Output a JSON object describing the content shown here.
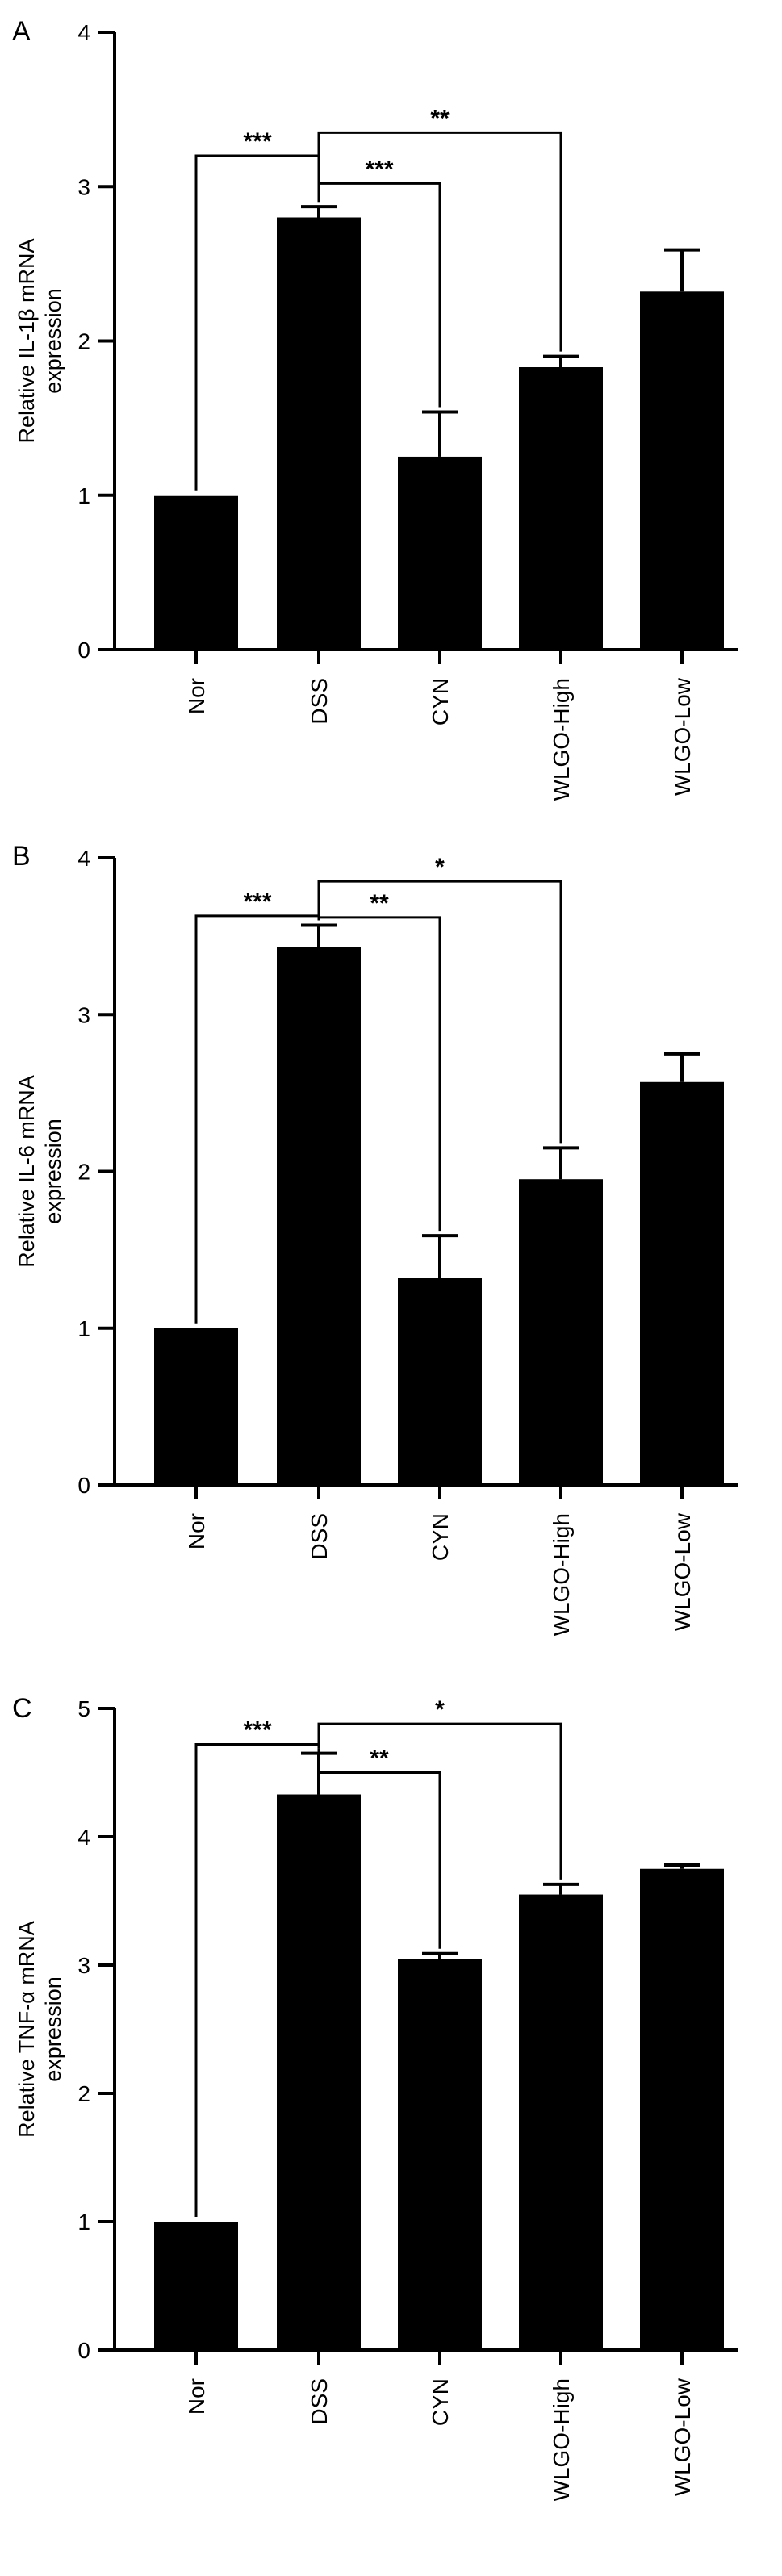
{
  "chart_data": [
    {
      "type": "bar",
      "panel_label": "A",
      "ylabel": [
        "Relative IL-1β mRNA",
        "expression"
      ],
      "categories": [
        "Nor",
        "DSS",
        "CYN",
        "WLGO-High",
        "WLGO-Low"
      ],
      "values": [
        1.0,
        2.8,
        1.25,
        1.83,
        2.32
      ],
      "errors": [
        0.0,
        0.07,
        0.29,
        0.07,
        0.27
      ],
      "ylim": [
        0,
        4
      ],
      "yticks": [
        "0",
        "1",
        "2",
        "3",
        "4"
      ],
      "significance": [
        {
          "from": "Nor",
          "to": "DSS",
          "label": "***",
          "y": 3.2
        },
        {
          "from": "DSS",
          "to": "CYN",
          "label": "***",
          "y": 3.02
        },
        {
          "from": "DSS",
          "to": "WLGO-High",
          "label": "**",
          "y": 3.35
        }
      ]
    },
    {
      "type": "bar",
      "panel_label": "B",
      "ylabel": [
        "Relative IL-6 mRNA",
        "expression"
      ],
      "categories": [
        "Nor",
        "DSS",
        "CYN",
        "WLGO-High",
        "WLGO-Low"
      ],
      "values": [
        1.0,
        3.43,
        1.32,
        1.95,
        2.57
      ],
      "errors": [
        0.0,
        0.14,
        0.27,
        0.2,
        0.18
      ],
      "ylim": [
        0,
        4
      ],
      "yticks": [
        "0",
        "1",
        "2",
        "3",
        "4"
      ],
      "significance": [
        {
          "from": "Nor",
          "to": "DSS",
          "label": "***",
          "y": 3.63
        },
        {
          "from": "DSS",
          "to": "CYN",
          "label": "**",
          "y": 3.62
        },
        {
          "from": "DSS",
          "to": "WLGO-High",
          "label": "*",
          "y": 3.85
        }
      ]
    },
    {
      "type": "bar",
      "panel_label": "C",
      "ylabel": [
        "Relative TNF-α mRNA",
        "expression"
      ],
      "categories": [
        "Nor",
        "DSS",
        "CYN",
        "WLGO-High",
        "WLGO-Low"
      ],
      "values": [
        1.0,
        4.33,
        3.05,
        3.55,
        3.75
      ],
      "errors": [
        0.0,
        0.32,
        0.04,
        0.08,
        0.03
      ],
      "ylim": [
        0,
        5
      ],
      "yticks": [
        "0",
        "1",
        "2",
        "3",
        "4",
        "5"
      ],
      "significance": [
        {
          "from": "Nor",
          "to": "DSS",
          "label": "***",
          "y": 4.72
        },
        {
          "from": "DSS",
          "to": "CYN",
          "label": "**",
          "y": 4.5
        },
        {
          "from": "DSS",
          "to": "WLGO-High",
          "label": "*",
          "y": 4.88
        }
      ]
    }
  ]
}
